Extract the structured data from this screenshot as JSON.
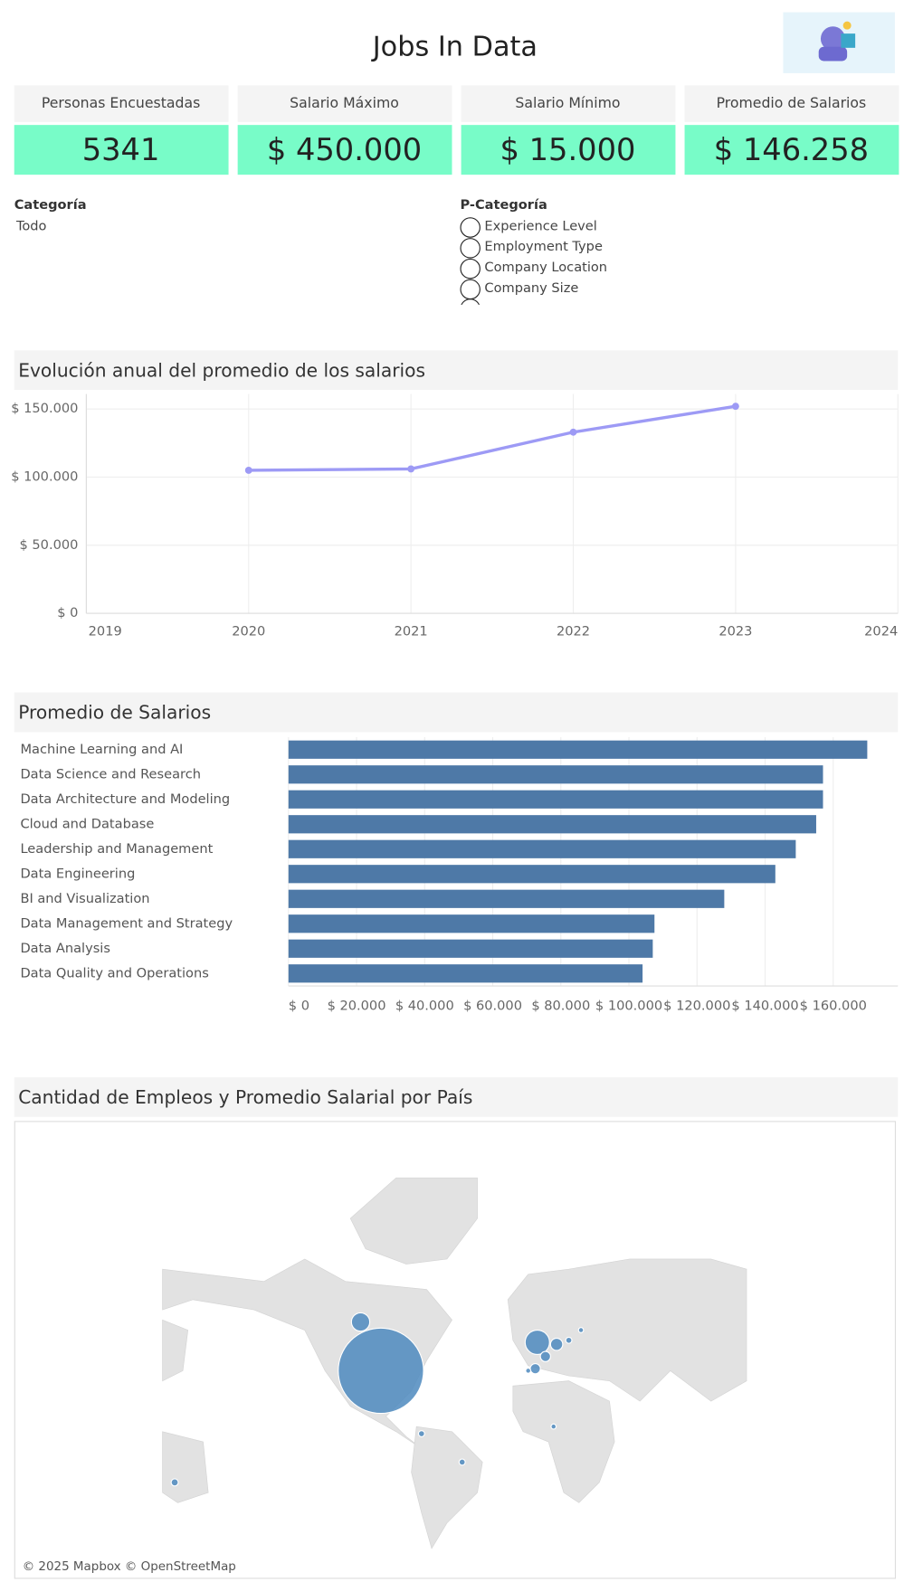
{
  "header": {
    "title": "Jobs In Data"
  },
  "kpis": [
    {
      "label": "Personas Encuestadas",
      "value": "5341"
    },
    {
      "label": "Salario Máximo",
      "value": "$ 450.000"
    },
    {
      "label": "Salario Mínimo",
      "value": "$ 15.000"
    },
    {
      "label": "Promedio de Salarios",
      "value": "$ 146.258"
    }
  ],
  "filters": {
    "category": {
      "label": "Categoría",
      "value": "Todo"
    },
    "subcategory": {
      "label": "P-Categoría",
      "options": [
        "Experience Level",
        "Employment Type",
        "Company Location",
        "Company Size"
      ]
    }
  },
  "chart_data": [
    {
      "type": "line",
      "title": "Evolución anual del promedio de los salarios",
      "x": [
        2020,
        2021,
        2022,
        2023
      ],
      "series": [
        {
          "color": "#9d9af5",
          "values": [
            105000,
            106000,
            133000,
            152000
          ]
        }
      ],
      "xlim": [
        2019,
        2024
      ],
      "xticks": [
        2019,
        2020,
        2021,
        2022,
        2023,
        2024
      ],
      "ylim": [
        0,
        161000
      ],
      "yticks": [
        {
          "value": 0,
          "label": "$ 0"
        },
        {
          "value": 50000,
          "label": "$ 50.000"
        },
        {
          "value": 100000,
          "label": "$ 100.000"
        },
        {
          "value": 150000,
          "label": "$ 150.000"
        }
      ],
      "grid": true
    },
    {
      "type": "hbar",
      "title": "Promedio de Salarios",
      "categories": [
        "Machine Learning and AI",
        "Data Science and Research",
        "Data Architecture and Modeling",
        "Cloud and Database",
        "Leadership and Management",
        "Data Engineering",
        "BI and Visualization",
        "Data Management and Strategy",
        "Data Analysis",
        "Data Quality and Operations"
      ],
      "values": [
        170000,
        157000,
        157000,
        155000,
        149000,
        143000,
        128000,
        107500,
        107000,
        104000
      ],
      "color": "#4e79a7",
      "xlim": [
        0,
        179000
      ],
      "xticks": [
        {
          "value": 0,
          "label": "$ 0"
        },
        {
          "value": 20000,
          "label": "$ 20.000"
        },
        {
          "value": 40000,
          "label": "$ 40.000"
        },
        {
          "value": 60000,
          "label": "$ 60.000"
        },
        {
          "value": 80000,
          "label": "$ 80.000"
        },
        {
          "value": 100000,
          "label": "$ 100.000"
        },
        {
          "value": 120000,
          "label": "$ 120.000"
        },
        {
          "value": 140000,
          "label": "$ 140.000"
        },
        {
          "value": 160000,
          "label": "$ 160.000"
        }
      ],
      "grid": true
    }
  ],
  "map": {
    "title": "Cantidad de Empleos y Promedio Salarial por País",
    "attribution": "© 2025 Mapbox © OpenStreetMap"
  }
}
